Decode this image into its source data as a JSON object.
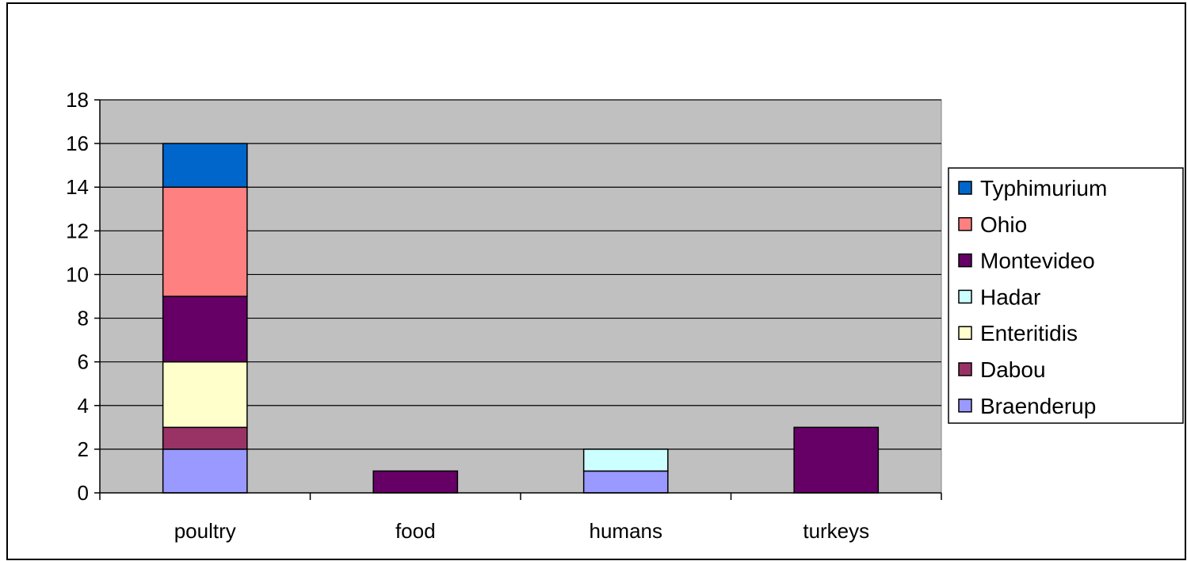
{
  "chart_data": {
    "type": "bar",
    "stacked": true,
    "categories": [
      "poultry",
      "food",
      "humans",
      "turkeys"
    ],
    "series": [
      {
        "name": "Braenderup",
        "color": "#9999ff",
        "values": [
          2,
          0,
          1,
          0
        ]
      },
      {
        "name": "Dabou",
        "color": "#993366",
        "values": [
          1,
          0,
          0,
          0
        ]
      },
      {
        "name": "Enteritidis",
        "color": "#ffffcc",
        "values": [
          3,
          0,
          0,
          0
        ]
      },
      {
        "name": "Hadar",
        "color": "#ccffff",
        "values": [
          0,
          0,
          1,
          0
        ]
      },
      {
        "name": "Montevideo",
        "color": "#660066",
        "values": [
          3,
          1,
          0,
          3
        ]
      },
      {
        "name": "Ohio",
        "color": "#ff8080",
        "values": [
          5,
          0,
          0,
          0
        ]
      },
      {
        "name": "Typhimurium",
        "color": "#0066cc",
        "values": [
          2,
          0,
          0,
          0
        ]
      }
    ],
    "y_ticks": [
      "0",
      "2",
      "4",
      "6",
      "8",
      "10",
      "12",
      "14",
      "16",
      "18"
    ],
    "ylim": [
      0,
      18
    ],
    "title": "",
    "xlabel": "",
    "ylabel": "",
    "grid": true,
    "plot_background": "#c0c0c0",
    "legend_placement": "right",
    "legend_order": [
      "Typhimurium",
      "Ohio",
      "Montevideo",
      "Hadar",
      "Enteritidis",
      "Dabou",
      "Braenderup"
    ]
  }
}
